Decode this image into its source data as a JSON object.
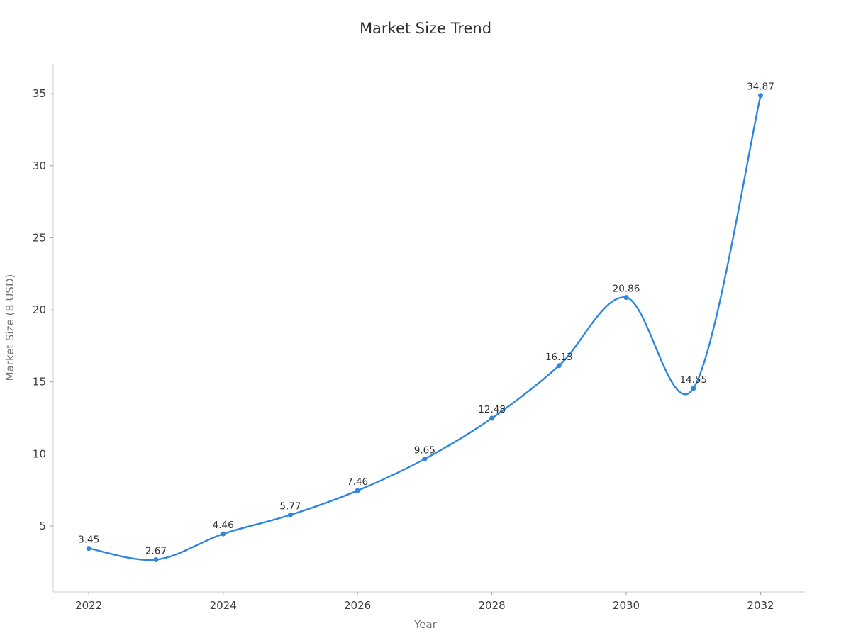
{
  "page": {
    "background_color": "#ffffff"
  },
  "chart_data": {
    "type": "line",
    "title": "Market Size Trend",
    "xlabel": "Year",
    "ylabel": "Market Size (B USD)",
    "x": [
      2022,
      2023,
      2024,
      2025,
      2026,
      2027,
      2028,
      2029,
      2030,
      2031,
      2032
    ],
    "values": [
      3.45,
      2.67,
      4.46,
      5.77,
      7.46,
      9.65,
      12.48,
      16.13,
      20.86,
      14.55,
      34.87
    ],
    "point_labels": [
      "3.45",
      "2.67",
      "4.46",
      "5.77",
      "7.46",
      "9.65",
      "12.48",
      "16.13",
      "20.86",
      "14.55",
      "34.87"
    ],
    "x_ticks": [
      2022,
      2024,
      2026,
      2028,
      2030,
      2032
    ],
    "y_ticks": [
      5,
      10,
      15,
      20,
      25,
      30,
      35
    ],
    "xlim": [
      2021.47,
      2032.66
    ],
    "ylim": [
      0.43,
      37.07
    ],
    "line_color": "#2E86DE",
    "marker_color": "#2E86DE",
    "smooth": true,
    "grid": false,
    "legend_position": "none"
  }
}
